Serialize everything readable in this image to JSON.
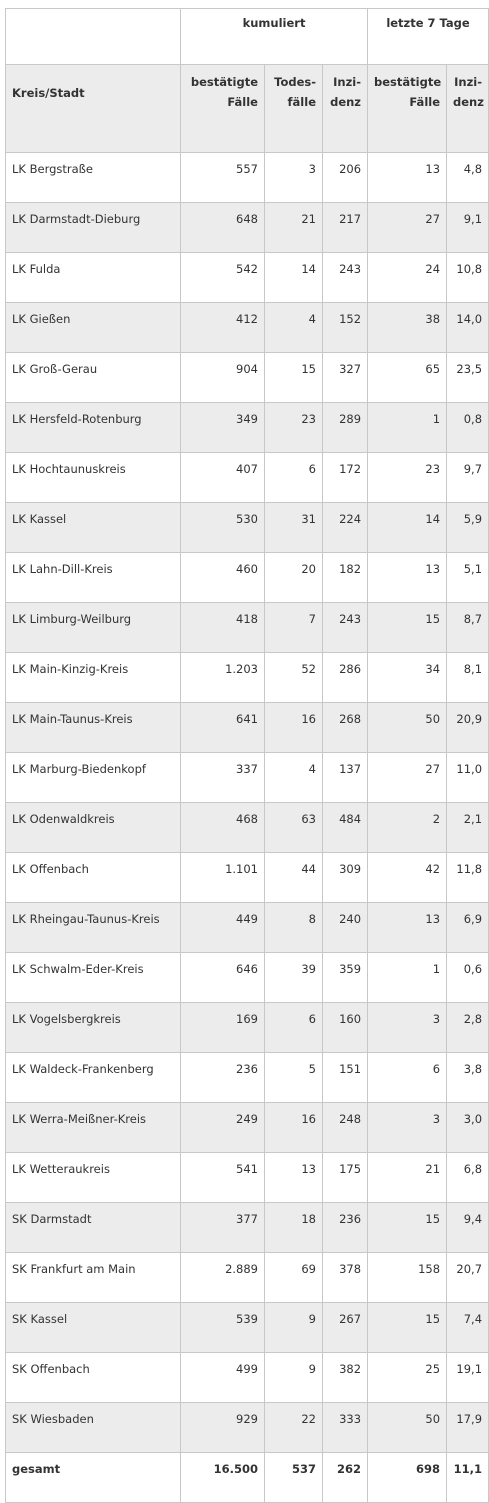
{
  "header": {
    "group_cumulative": "kumuliert",
    "group_last7": "letzte 7 Tage",
    "col_name": "Kreis/Stadt",
    "col_cases_line1": "bestätigte",
    "col_cases_line2": "Fälle",
    "col_deaths_line1": "Todes-",
    "col_deaths_line2": "fälle",
    "col_incidence_line1": "Inzi-",
    "col_incidence_line2": "denz",
    "col_cases7_line1": "bestätigte",
    "col_cases7_line2": "Fälle",
    "col_incidence7_line1": "Inzi-",
    "col_incidence7_line2": "denz"
  },
  "rows": [
    [
      "LK Bergstraße",
      "557",
      "3",
      "206",
      "13",
      "4,8"
    ],
    [
      "LK Darmstadt-Dieburg",
      "648",
      "21",
      "217",
      "27",
      "9,1"
    ],
    [
      "LK Fulda",
      "542",
      "14",
      "243",
      "24",
      "10,8"
    ],
    [
      "LK Gießen",
      "412",
      "4",
      "152",
      "38",
      "14,0"
    ],
    [
      "LK Groß-Gerau",
      "904",
      "15",
      "327",
      "65",
      "23,5"
    ],
    [
      "LK Hersfeld-Rotenburg",
      "349",
      "23",
      "289",
      "1",
      "0,8"
    ],
    [
      "LK Hochtaunuskreis",
      "407",
      "6",
      "172",
      "23",
      "9,7"
    ],
    [
      "LK Kassel",
      "530",
      "31",
      "224",
      "14",
      "5,9"
    ],
    [
      "LK Lahn-Dill-Kreis",
      "460",
      "20",
      "182",
      "13",
      "5,1"
    ],
    [
      "LK Limburg-Weilburg",
      "418",
      "7",
      "243",
      "15",
      "8,7"
    ],
    [
      "LK Main-Kinzig-Kreis",
      "1.203",
      "52",
      "286",
      "34",
      "8,1"
    ],
    [
      "LK Main-Taunus-Kreis",
      "641",
      "16",
      "268",
      "50",
      "20,9"
    ],
    [
      "LK Marburg-Biedenkopf",
      "337",
      "4",
      "137",
      "27",
      "11,0"
    ],
    [
      "LK Odenwaldkreis",
      "468",
      "63",
      "484",
      "2",
      "2,1"
    ],
    [
      "LK Offenbach",
      "1.101",
      "44",
      "309",
      "42",
      "11,8"
    ],
    [
      "LK Rheingau-Taunus-Kreis",
      "449",
      "8",
      "240",
      "13",
      "6,9"
    ],
    [
      "LK Schwalm-Eder-Kreis",
      "646",
      "39",
      "359",
      "1",
      "0,6"
    ],
    [
      "LK Vogelsbergkreis",
      "169",
      "6",
      "160",
      "3",
      "2,8"
    ],
    [
      "LK Waldeck-Frankenberg",
      "236",
      "5",
      "151",
      "6",
      "3,8"
    ],
    [
      "LK Werra-Meißner-Kreis",
      "249",
      "16",
      "248",
      "3",
      "3,0"
    ],
    [
      "LK Wetteraukreis",
      "541",
      "13",
      "175",
      "21",
      "6,8"
    ],
    [
      "SK Darmstadt",
      "377",
      "18",
      "236",
      "15",
      "9,4"
    ],
    [
      "SK Frankfurt am Main",
      "2.889",
      "69",
      "378",
      "158",
      "20,7"
    ],
    [
      "SK Kassel",
      "539",
      "9",
      "267",
      "15",
      "7,4"
    ],
    [
      "SK Offenbach",
      "499",
      "9",
      "382",
      "25",
      "19,1"
    ],
    [
      "SK Wiesbaden",
      "929",
      "22",
      "333",
      "50",
      "17,9"
    ],
    [
      "gesamt",
      "16.500",
      "537",
      "262",
      "698",
      "11,1"
    ]
  ]
}
